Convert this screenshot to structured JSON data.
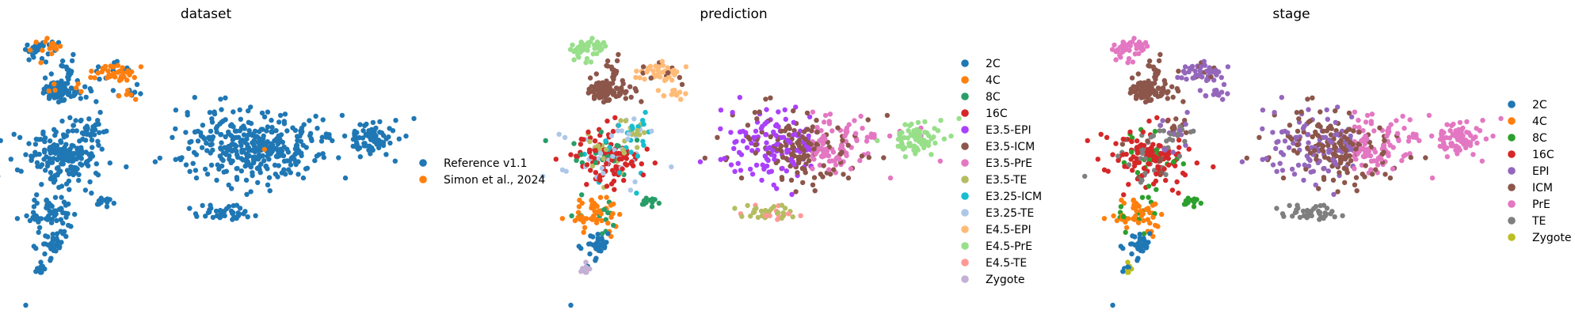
{
  "chart_data": [
    {
      "type": "scatter",
      "title": "dataset",
      "legend_placement": "right",
      "series": [
        {
          "name": "Reference v1.1",
          "color": "#1f77b4"
        },
        {
          "name": "Simon et al., 2024",
          "color": "#ff7f0e"
        }
      ]
    },
    {
      "type": "scatter",
      "title": "prediction",
      "legend_placement": "right",
      "series": [
        {
          "name": "2C",
          "color": "#1f77b4"
        },
        {
          "name": "4C",
          "color": "#ff7f0e"
        },
        {
          "name": "8C",
          "color": "#279e68"
        },
        {
          "name": "16C",
          "color": "#d62728"
        },
        {
          "name": "E3.5-EPI",
          "color": "#aa40fc"
        },
        {
          "name": "E3.5-ICM",
          "color": "#8c564b"
        },
        {
          "name": "E3.5-PrE",
          "color": "#e377c2"
        },
        {
          "name": "E3.5-TE",
          "color": "#b5bd61"
        },
        {
          "name": "E3.25-ICM",
          "color": "#17becf"
        },
        {
          "name": "E3.25-TE",
          "color": "#aec7e8"
        },
        {
          "name": "E4.5-EPI",
          "color": "#ffbb78"
        },
        {
          "name": "E4.5-PrE",
          "color": "#98df8a"
        },
        {
          "name": "E4.5-TE",
          "color": "#ff9896"
        },
        {
          "name": "Zygote",
          "color": "#c5b0d5"
        }
      ]
    },
    {
      "type": "scatter",
      "title": "stage",
      "legend_placement": "right",
      "series": [
        {
          "name": "2C",
          "color": "#1f77b4"
        },
        {
          "name": "4C",
          "color": "#ff7f0e"
        },
        {
          "name": "8C",
          "color": "#2ca02c"
        },
        {
          "name": "16C",
          "color": "#d62728"
        },
        {
          "name": "EPI",
          "color": "#9467bd"
        },
        {
          "name": "ICM",
          "color": "#8c564b"
        },
        {
          "name": "PrE",
          "color": "#e377c2"
        },
        {
          "name": "TE",
          "color": "#7f7f7f"
        },
        {
          "name": "Zygote",
          "color": "#bcbd22"
        }
      ]
    }
  ]
}
